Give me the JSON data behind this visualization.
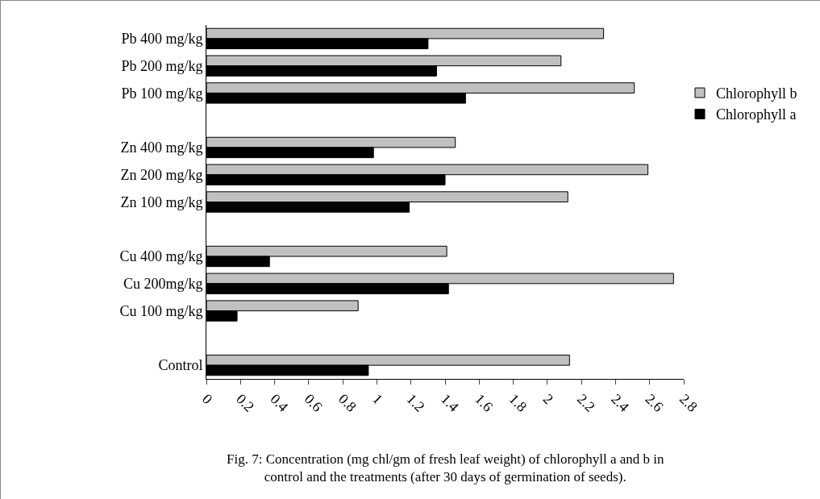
{
  "chart_data": {
    "type": "bar",
    "orientation": "horizontal",
    "categories": [
      "Pb 400 mg/kg",
      "Pb 200 mg/kg",
      "Pb 100 mg/kg",
      null,
      "Zn 400 mg/kg",
      "Zn 200 mg/kg",
      "Zn 100 mg/kg",
      null,
      "Cu 400 mg/kg",
      "Cu 200mg/kg",
      "Cu 100 mg/kg",
      null,
      "Control"
    ],
    "series": [
      {
        "name": "Chlorophyll b",
        "color": "#c0c0c0",
        "values": [
          2.33,
          2.08,
          2.51,
          null,
          1.46,
          2.59,
          2.12,
          null,
          1.41,
          2.74,
          0.89,
          null,
          2.13
        ]
      },
      {
        "name": "Chlorophyll a",
        "color": "#000000",
        "values": [
          1.3,
          1.35,
          1.52,
          null,
          0.98,
          1.4,
          1.19,
          null,
          0.37,
          1.42,
          0.18,
          null,
          0.95
        ]
      }
    ],
    "xlim": [
      0,
      2.8
    ],
    "xticks": [
      0,
      0.2,
      0.4,
      0.6,
      0.8,
      1,
      1.2,
      1.4,
      1.6,
      1.8,
      2,
      2.2,
      2.4,
      2.6,
      2.8
    ],
    "grid": false,
    "legend": "right",
    "annotations": [
      "Fig. 7: Concentration (mg chl/gm of fresh leaf weight) of chlorophyll a and b in control and the treatments (after 30 days of germination of seeds)."
    ]
  }
}
